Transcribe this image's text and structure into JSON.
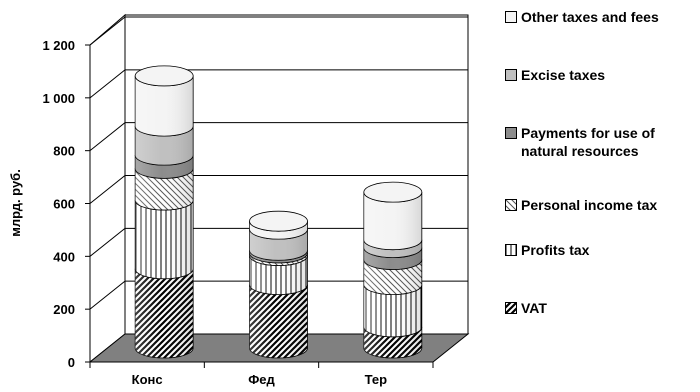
{
  "chart_data": {
    "type": "bar",
    "stacked": true,
    "ylabel": "млрд. руб.",
    "ylim": [
      0,
      1200
    ],
    "yticks": [
      0,
      200,
      400,
      600,
      800,
      1000,
      1200
    ],
    "ytick_labels": [
      "0",
      "200",
      "400",
      "600",
      "800",
      "1 000",
      "1 200"
    ],
    "categories": [
      "Конс",
      "Фед",
      "Тер"
    ],
    "grid": true,
    "legend_position": "right",
    "series": [
      {
        "name": "VAT",
        "pattern": "diag-dense",
        "values": [
          300,
          240,
          80
        ]
      },
      {
        "name": "Profits tax",
        "pattern": "vertical",
        "values": [
          260,
          110,
          160
        ]
      },
      {
        "name": "Personal income tax",
        "pattern": "diag-light",
        "values": [
          120,
          10,
          95
        ]
      },
      {
        "name": "Payments for use of\nnatural resources",
        "pattern": "dark-gray",
        "values": [
          50,
          10,
          45
        ]
      },
      {
        "name": "Excise taxes",
        "pattern": "light-gray",
        "values": [
          110,
          80,
          30
        ]
      },
      {
        "name": "Other taxes and fees",
        "pattern": "white",
        "values": [
          190,
          30,
          180
        ]
      }
    ]
  },
  "colors": {
    "floor": "#808080",
    "gridline": "#000000",
    "background": "#ffffff"
  }
}
